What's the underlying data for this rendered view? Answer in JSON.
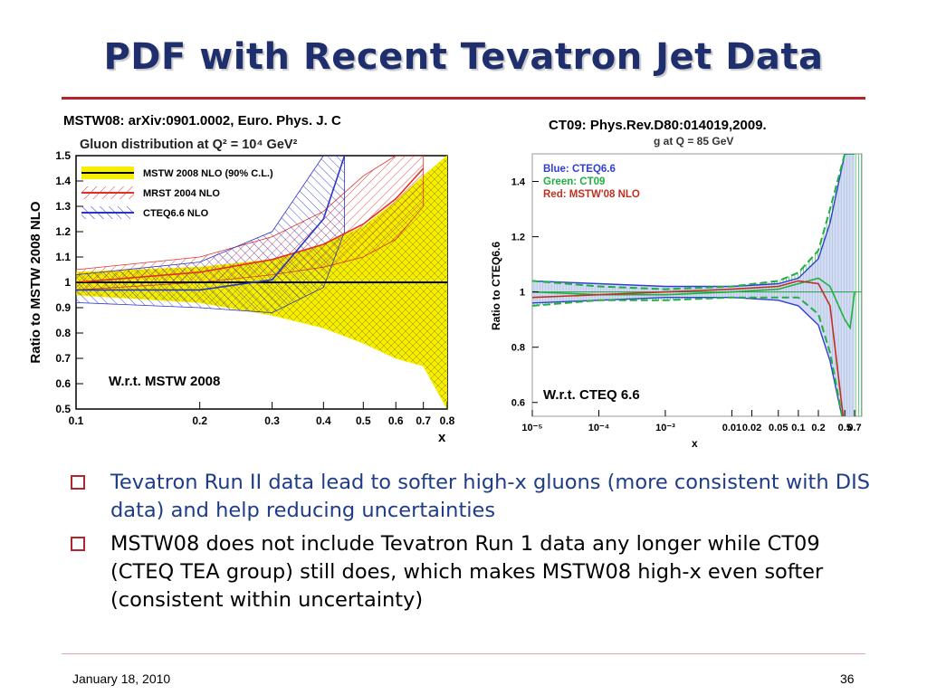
{
  "slide": {
    "title": "PDF with Recent Tevatron Jet Data",
    "left_citation": "MSTW08: arXiv:0901.0002, Euro. Phys. J. C",
    "right_citation": "CT09: Phys.Rev.D80:014019,2009.",
    "bullets": [
      "Tevatron Run II data lead to softer high-x gluons (more consistent with DIS data) and help reducing uncertainties",
      "MSTW08 does not include Tevatron Run 1 data any longer while CT09 (CTEQ TEA group) still does, which makes MSTW08 high-x even softer (consistent within uncertainty)"
    ],
    "footer_date": "January 18, 2010",
    "page_number": "36",
    "colors": {
      "title": "#1f2f6e",
      "accent": "#b3242c",
      "bullet1": "#1f3c88"
    }
  },
  "chart_data": [
    {
      "type": "line",
      "title": "Gluon distribution at Q² = 10⁴ GeV²",
      "xlabel": "x",
      "ylabel": "Ratio to MSTW 2008 NLO",
      "xlim": [
        0.1,
        0.8
      ],
      "ylim": [
        0.5,
        1.5
      ],
      "x_ticks": [
        "0.1",
        "0.2",
        "0.3",
        "0.4",
        "0.5",
        "0.6",
        "0.7",
        "0.8"
      ],
      "y_ticks": [
        "0.5",
        "0.6",
        "0.7",
        "0.8",
        "0.9",
        "1",
        "1.1",
        "1.2",
        "1.3",
        "1.4",
        "1.5"
      ],
      "annotation": "W.r.t. MSTW 2008",
      "legend_position": "top-left",
      "series": [
        {
          "name": "MSTW 2008 NLO (90% C.L.)",
          "color": "#f5ee00",
          "x": [
            0.1,
            0.2,
            0.3,
            0.4,
            0.5,
            0.6,
            0.7,
            0.8
          ],
          "central": [
            1,
            1,
            1,
            1,
            1,
            1,
            1,
            1
          ],
          "upper": [
            1.04,
            1.06,
            1.09,
            1.15,
            1.22,
            1.32,
            1.42,
            1.5
          ],
          "lower": [
            0.95,
            0.92,
            0.87,
            0.82,
            0.76,
            0.7,
            0.67,
            0.5
          ]
        },
        {
          "name": "MRST 2004 NLO",
          "color": "#e0302c",
          "x": [
            0.1,
            0.2,
            0.3,
            0.4,
            0.5,
            0.6,
            0.7
          ],
          "central": [
            1.0,
            1.04,
            1.09,
            1.15,
            1.23,
            1.33,
            1.45
          ],
          "upper": [
            1.05,
            1.1,
            1.18,
            1.28,
            1.42,
            1.5,
            1.5
          ],
          "lower": [
            0.97,
            1.0,
            1.03,
            1.06,
            1.1,
            1.17,
            1.3
          ]
        },
        {
          "name": "CTEQ6.6 NLO",
          "color": "#2a34c8",
          "x": [
            0.1,
            0.2,
            0.3,
            0.4,
            0.45
          ],
          "central": [
            0.97,
            0.97,
            1.01,
            1.25,
            1.5
          ],
          "upper": [
            1.03,
            1.08,
            1.2,
            1.5,
            1.5
          ],
          "lower": [
            0.92,
            0.9,
            0.88,
            0.98,
            1.2
          ]
        }
      ]
    },
    {
      "type": "line",
      "title": "g at Q = 85 GeV",
      "xlabel": "x",
      "ylabel": "Ratio to CTEQ6.6",
      "x_scale": "log",
      "xlim": [
        1e-05,
        0.9
      ],
      "ylim": [
        0.55,
        1.5
      ],
      "x_ticks": [
        "10⁻⁵",
        "10⁻⁴",
        "10⁻³",
        "0.01",
        "0.02",
        "0.05",
        "0.1",
        "0.2",
        "0.5",
        "0.7"
      ],
      "y_ticks": [
        "0.6",
        "0.8",
        "1",
        "1.2",
        "1.4"
      ],
      "annotation": "W.r.t.  CTEQ 6.6",
      "legend": [
        "Blue: CTEQ6.6",
        "Green: CT09",
        "Red: MSTW'08 NLO"
      ],
      "legend_position": "top-left",
      "series": [
        {
          "name": "Blue: CTEQ6.6",
          "color": "#3040d0",
          "x": [
            1e-05,
            0.0001,
            0.001,
            0.01,
            0.05,
            0.1,
            0.2,
            0.3,
            0.5,
            0.7
          ],
          "central": [
            1,
            1,
            1,
            1,
            1,
            1,
            1,
            1,
            1,
            1
          ],
          "upper": [
            1.04,
            1.03,
            1.02,
            1.02,
            1.03,
            1.05,
            1.12,
            1.25,
            1.5,
            1.5
          ],
          "lower": [
            0.96,
            0.97,
            0.98,
            0.98,
            0.97,
            0.95,
            0.88,
            0.75,
            0.5,
            0.5
          ]
        },
        {
          "name": "Green: CT09",
          "color": "#20b040",
          "x": [
            1e-05,
            0.0001,
            0.001,
            0.01,
            0.05,
            0.1,
            0.2,
            0.3,
            0.5,
            0.6,
            0.7
          ],
          "central": [
            1.0,
            0.99,
            0.99,
            1.0,
            1.01,
            1.03,
            1.05,
            1.02,
            0.9,
            0.87,
            1.0
          ],
          "upper": [
            1.04,
            1.02,
            1.01,
            1.02,
            1.04,
            1.07,
            1.15,
            1.3,
            1.5,
            1.5,
            1.5
          ],
          "lower": [
            0.95,
            0.97,
            0.97,
            0.98,
            0.98,
            0.98,
            0.92,
            0.78,
            0.5,
            0.5,
            0.5
          ]
        },
        {
          "name": "Red: MSTW'08 NLO",
          "color": "#c03020",
          "x": [
            1e-05,
            0.0001,
            0.001,
            0.01,
            0.05,
            0.1,
            0.2,
            0.3,
            0.5
          ],
          "central": [
            0.98,
            0.99,
            1.0,
            1.01,
            1.02,
            1.04,
            1.03,
            0.95,
            0.5
          ]
        }
      ]
    }
  ]
}
